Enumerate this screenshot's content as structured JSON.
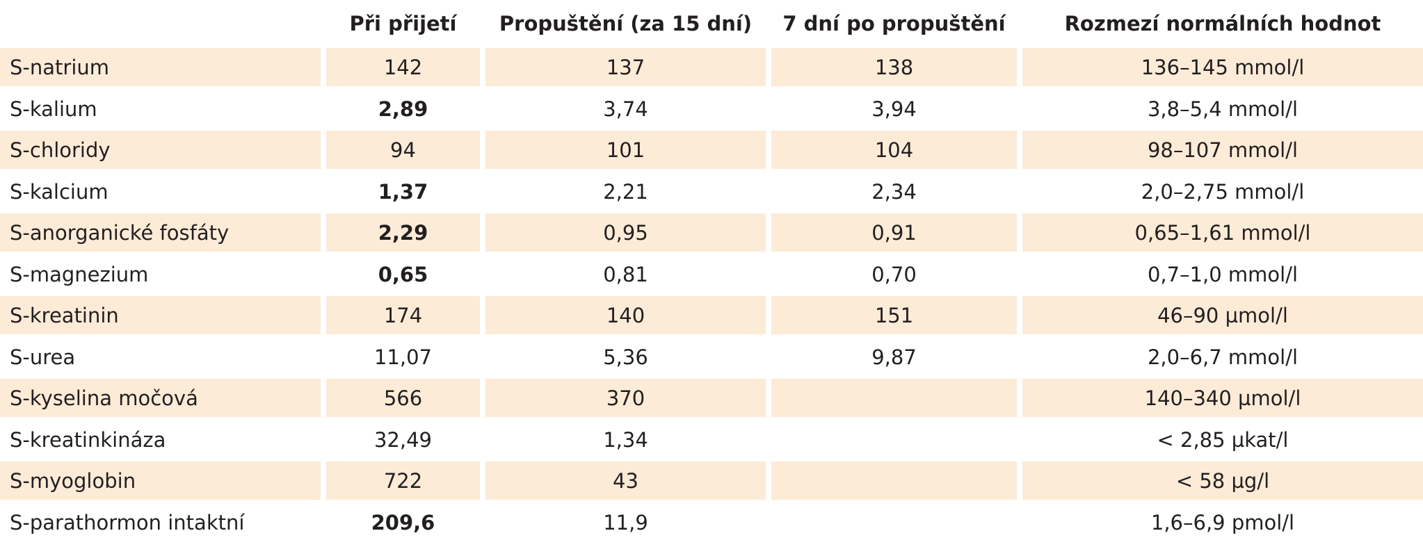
{
  "headers": [
    "",
    "Při přijetí",
    "Propuštění (za 15 dní)",
    "7 dní po propuštění",
    "Rozmezí normálních hodnot"
  ],
  "rows": [
    {
      "label": "S-natrium",
      "admission": "142",
      "discharge": "137",
      "after7": "138",
      "normal": "136–145 mmol/l",
      "admission_bold": false
    },
    {
      "label": "S-kalium",
      "admission": "2,89",
      "discharge": "3,74",
      "after7": "3,94",
      "normal": "3,8–5,4 mmol/l",
      "admission_bold": true
    },
    {
      "label": "S-chloridy",
      "admission": "94",
      "discharge": "101",
      "after7": "104",
      "normal": "98–107 mmol/l",
      "admission_bold": false
    },
    {
      "label": "S-kalcium",
      "admission": "1,37",
      "discharge": "2,21",
      "after7": "2,34",
      "normal": "2,0–2,75 mmol/l",
      "admission_bold": true
    },
    {
      "label": "S-anorganické fosfáty",
      "admission": "2,29",
      "discharge": "0,95",
      "after7": "0,91",
      "normal": "0,65–1,61 mmol/l",
      "admission_bold": true
    },
    {
      "label": "S-magnezium",
      "admission": "0,65",
      "discharge": "0,81",
      "after7": "0,70",
      "normal": "0,7–1,0 mmol/l",
      "admission_bold": true
    },
    {
      "label": "S-kreatinin",
      "admission": "174",
      "discharge": "140",
      "after7": "151",
      "normal": "46–90 µmol/l",
      "admission_bold": false
    },
    {
      "label": "S-urea",
      "admission": "11,07",
      "discharge": "5,36",
      "after7": "9,87",
      "normal": "2,0–6,7 mmol/l",
      "admission_bold": false
    },
    {
      "label": "S-kyselina močová",
      "admission": "566",
      "discharge": "370",
      "after7": "",
      "normal": "140–340 µmol/l",
      "admission_bold": false
    },
    {
      "label": "S-kreatinkináza",
      "admission": "32,49",
      "discharge": "1,34",
      "after7": "",
      "normal": "< 2,85 µkat/l",
      "admission_bold": false
    },
    {
      "label": "S-myoglobin",
      "admission": "722",
      "discharge": "43",
      "after7": "",
      "normal": "< 58 µg/l",
      "admission_bold": false
    },
    {
      "label": "S-parathormon intaktní",
      "admission": "209,6",
      "discharge": "11,9",
      "after7": "",
      "normal": "1,6–6,9 pmol/l",
      "admission_bold": true
    }
  ]
}
